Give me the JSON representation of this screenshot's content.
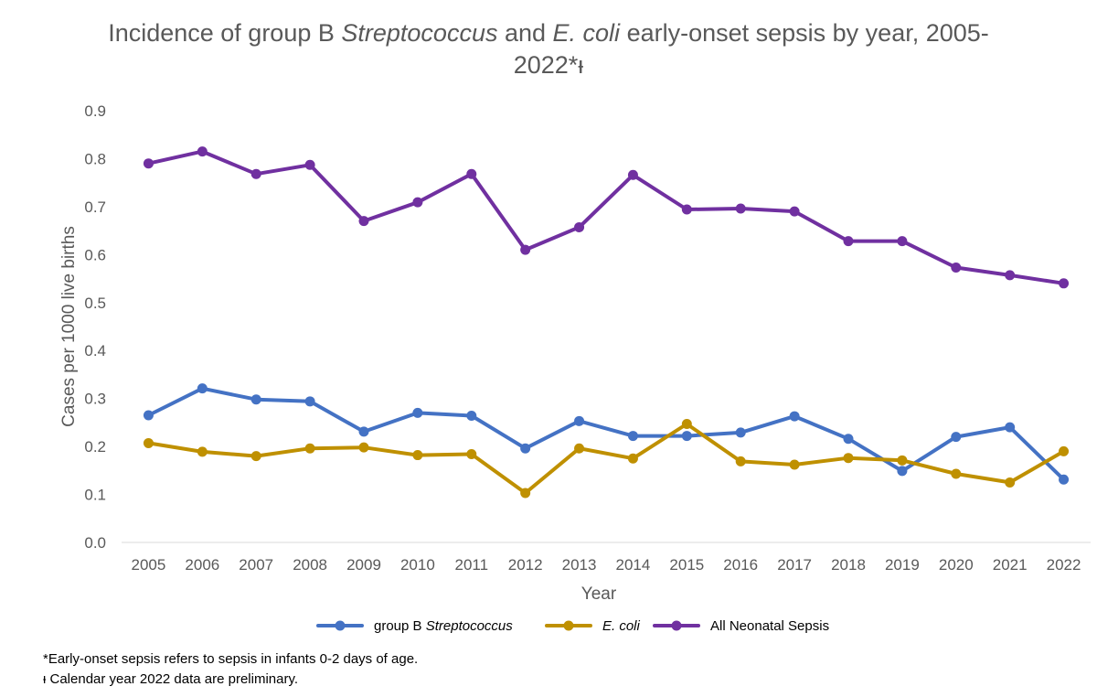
{
  "chart_data": {
    "type": "line",
    "title_parts": [
      {
        "text": "Incidence of group B ",
        "italic": false
      },
      {
        "text": "Streptococcus",
        "italic": true
      },
      {
        "text": " and ",
        "italic": false
      },
      {
        "text": "E. coli",
        "italic": true
      },
      {
        "text": " early-onset sepsis by year, 2005-",
        "italic": false
      }
    ],
    "title_line2": "2022*ᵻ",
    "xlabel": "Year",
    "ylabel": "Cases per 1000 live births",
    "categories": [
      "2005",
      "2006",
      "2007",
      "2008",
      "2009",
      "2010",
      "2011",
      "2012",
      "2013",
      "2014",
      "2015",
      "2016",
      "2017",
      "2018",
      "2019",
      "2020",
      "2021",
      "2022"
    ],
    "ylim": [
      0,
      0.9
    ],
    "yticks": [
      "0.0",
      "0.1",
      "0.2",
      "0.3",
      "0.4",
      "0.5",
      "0.6",
      "0.7",
      "0.8",
      "0.9"
    ],
    "series": [
      {
        "name": "group B Streptococcus",
        "legend_parts": [
          {
            "text": "group B ",
            "italic": false
          },
          {
            "text": "Streptococcus",
            "italic": true
          }
        ],
        "color": "#4472C4",
        "values": [
          0.265,
          0.321,
          0.298,
          0.294,
          0.231,
          0.27,
          0.264,
          0.196,
          0.253,
          0.222,
          0.222,
          0.229,
          0.263,
          0.216,
          0.149,
          0.22,
          0.24,
          0.131
        ]
      },
      {
        "name": "E. coli",
        "legend_parts": [
          {
            "text": "E. coli",
            "italic": true
          }
        ],
        "color": "#BF9000",
        "values": [
          0.207,
          0.189,
          0.18,
          0.196,
          0.198,
          0.182,
          0.184,
          0.103,
          0.196,
          0.175,
          0.247,
          0.169,
          0.162,
          0.176,
          0.171,
          0.143,
          0.125,
          0.19
        ]
      },
      {
        "name": "All Neonatal Sepsis",
        "legend_parts": [
          {
            "text": "All Neonatal Sepsis",
            "italic": false
          }
        ],
        "color": "#7030A0",
        "values": [
          0.79,
          0.815,
          0.768,
          0.787,
          0.67,
          0.709,
          0.768,
          0.61,
          0.657,
          0.766,
          0.694,
          0.696,
          0.69,
          0.628,
          0.628,
          0.573,
          0.557,
          0.54
        ]
      }
    ],
    "grid": false,
    "legend_position": "bottom"
  },
  "footnotes": {
    "line1": "*Early-onset sepsis refers to sepsis in infants 0-2 days of age.",
    "line2": "ᵻ Calendar year 2022 data are preliminary."
  }
}
